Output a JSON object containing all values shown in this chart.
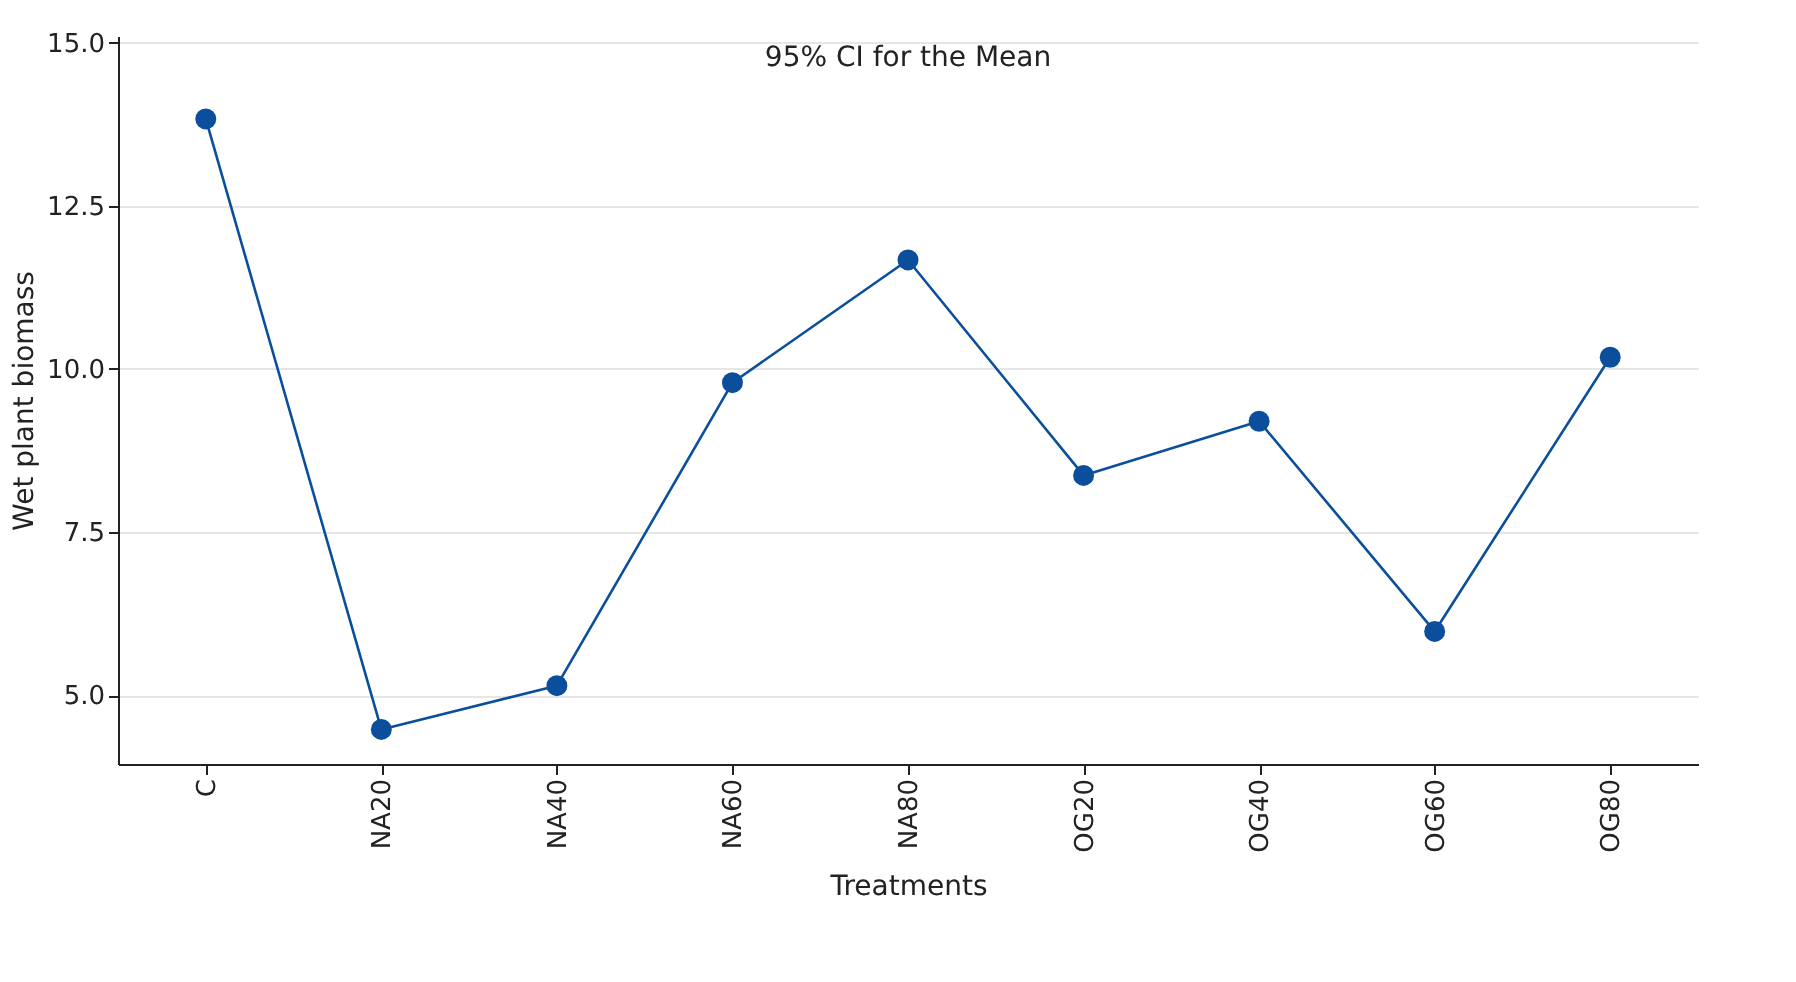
{
  "chart_data": {
    "type": "line",
    "title": "95% CI for the Mean",
    "xlabel": "Treatments",
    "ylabel": "Wet plant biomass",
    "categories": [
      "C",
      "NA20",
      "NA40",
      "NA60",
      "NA80",
      "OG20",
      "OG40",
      "OG60",
      "OG80"
    ],
    "series": [
      {
        "color": "#0b4f9c",
        "values": [
          13.83,
          4.48,
          5.15,
          9.79,
          11.67,
          8.37,
          9.2,
          5.98,
          10.18
        ]
      }
    ],
    "ylim": [
      3.95,
      15.1
    ],
    "yticks": [
      {
        "value": 5,
        "label": "5.0"
      },
      {
        "value": 7.5,
        "label": "7.5"
      },
      {
        "value": 10,
        "label": "10.0"
      },
      {
        "value": 12.5,
        "label": "12.5"
      },
      {
        "value": 15,
        "label": "15.0"
      }
    ],
    "grid": "y",
    "marker": "circle",
    "line_style": "solid"
  }
}
